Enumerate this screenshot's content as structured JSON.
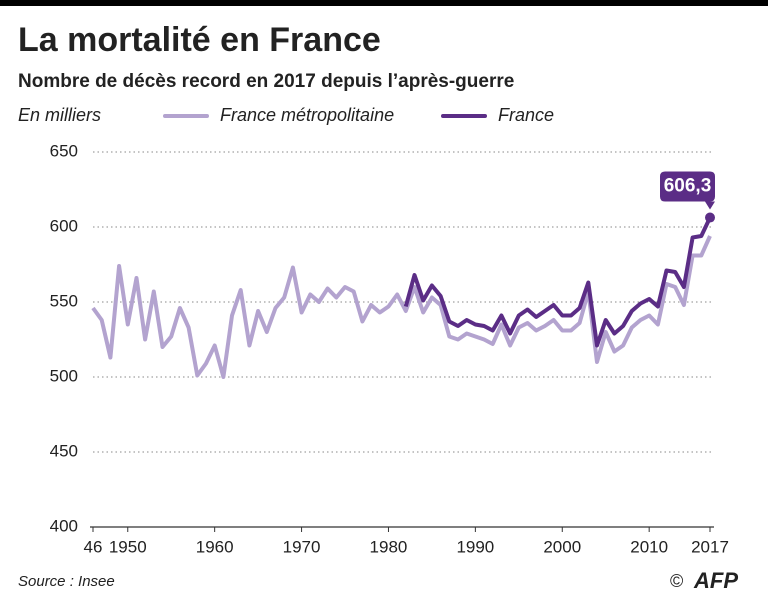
{
  "chart_data": {
    "type": "line",
    "title": "La mortalité en France",
    "subtitle": "Nombre de décès record en 2017 depuis l’après-guerre",
    "y_label": "En milliers",
    "source": "Source : Insee",
    "copyright": "©",
    "credit": "AFP",
    "x": [
      1946,
      1947,
      1948,
      1949,
      1950,
      1951,
      1952,
      1953,
      1954,
      1955,
      1956,
      1957,
      1958,
      1959,
      1960,
      1961,
      1962,
      1963,
      1964,
      1965,
      1966,
      1967,
      1968,
      1969,
      1970,
      1971,
      1972,
      1973,
      1974,
      1975,
      1976,
      1977,
      1978,
      1979,
      1980,
      1981,
      1982,
      1983,
      1984,
      1985,
      1986,
      1987,
      1988,
      1989,
      1990,
      1991,
      1992,
      1993,
      1994,
      1995,
      1996,
      1997,
      1998,
      1999,
      2000,
      2001,
      2002,
      2003,
      2004,
      2005,
      2006,
      2007,
      2008,
      2009,
      2010,
      2011,
      2012,
      2013,
      2014,
      2015,
      2016,
      2017
    ],
    "series": [
      {
        "name": "France métropolitaine",
        "color": "#b3a3cf",
        "values": [
          546,
          538,
          513,
          574,
          535,
          566,
          525,
          557,
          520,
          527,
          546,
          533,
          501,
          509,
          521,
          500,
          541,
          558,
          521,
          544,
          530,
          546,
          553,
          573,
          543,
          555,
          550,
          559,
          553,
          560,
          557,
          537,
          548,
          543,
          547,
          555,
          544,
          560,
          543,
          553,
          548,
          527,
          525,
          529,
          527,
          525,
          522,
          535,
          521,
          533,
          536,
          531,
          534,
          538,
          531,
          531,
          536,
          557,
          510,
          530,
          517,
          521,
          533,
          538,
          541,
          535,
          562,
          560,
          548,
          581,
          581,
          594
        ]
      },
      {
        "name": "France",
        "color": "#5b2d86",
        "values": [
          null,
          null,
          null,
          null,
          null,
          null,
          null,
          null,
          null,
          null,
          null,
          null,
          null,
          null,
          null,
          null,
          null,
          null,
          null,
          null,
          null,
          null,
          null,
          null,
          null,
          null,
          null,
          null,
          null,
          null,
          null,
          null,
          null,
          null,
          null,
          null,
          547,
          568,
          551,
          561,
          554,
          537,
          534,
          538,
          535,
          534,
          531,
          541,
          529,
          541,
          545,
          540,
          544,
          548,
          541,
          541,
          546,
          563,
          521,
          538,
          529,
          534,
          544,
          549,
          552,
          547,
          571,
          570,
          560,
          593,
          594,
          606.3
        ],
        "value_labels": [
          null,
          null,
          null,
          null,
          null,
          null,
          null,
          null,
          null,
          null,
          null,
          null,
          null,
          null,
          null,
          null,
          null,
          null,
          null,
          null,
          null,
          null,
          null,
          null,
          null,
          null,
          null,
          null,
          null,
          null,
          null,
          null,
          null,
          null,
          null,
          null,
          null,
          null,
          null,
          null,
          null,
          null,
          null,
          null,
          null,
          null,
          null,
          null,
          null,
          null,
          null,
          null,
          null,
          null,
          null,
          null,
          null,
          null,
          null,
          null,
          null,
          null,
          null,
          null,
          null,
          null,
          null,
          null,
          null,
          null,
          null,
          "606,3"
        ]
      }
    ],
    "xlim": [
      1946,
      2017
    ],
    "ylim": [
      400,
      650
    ],
    "xticks": [
      {
        "value": 1946,
        "label": "46"
      },
      1950,
      1960,
      1970,
      1980,
      1990,
      2000,
      2010,
      2017
    ],
    "yticks": [
      400,
      450,
      500,
      550,
      600,
      650
    ],
    "grid": true
  }
}
